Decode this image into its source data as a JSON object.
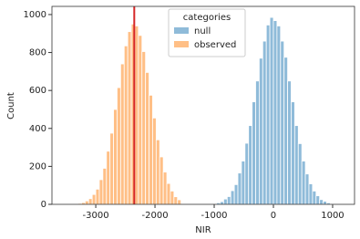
{
  "chart_data": {
    "type": "histogram",
    "xlabel": "NIR",
    "ylabel": "Count",
    "xlim": [
      -3740,
      1370
    ],
    "ylim": [
      0,
      1043
    ],
    "xticks": [
      -3000,
      -2000,
      -1000,
      0,
      1000
    ],
    "yticks": [
      0,
      200,
      400,
      600,
      800,
      1000
    ],
    "legend": "upper center",
    "legend_title": "categories",
    "vline": {
      "x": -2350,
      "color": "#d62728"
    },
    "series": [
      {
        "name": "null",
        "color": "#1f77b4",
        "bins": [
          -960,
          -900,
          -840,
          -780,
          -720,
          -660,
          -600,
          -540,
          -480,
          -420,
          -360,
          -300,
          -240,
          -180,
          -120,
          -60,
          0,
          60,
          120,
          180,
          240,
          300,
          360,
          420,
          480,
          540,
          600,
          660,
          720,
          780,
          840,
          900,
          960,
          1020,
          1080,
          1140
        ],
        "values": [
          8,
          14,
          28,
          41,
          72,
          104,
          165,
          228,
          322,
          415,
          540,
          650,
          770,
          860,
          945,
          985,
          968,
          940,
          860,
          775,
          650,
          540,
          415,
          320,
          228,
          160,
          108,
          70,
          45,
          25,
          16,
          8,
          4,
          2,
          1
        ]
      },
      {
        "name": "observed",
        "color": "#ff7f0e",
        "bins": [
          -3360,
          -3300,
          -3240,
          -3180,
          -3120,
          -3060,
          -3000,
          -2940,
          -2880,
          -2820,
          -2760,
          -2700,
          -2640,
          -2580,
          -2520,
          -2460,
          -2400,
          -2340,
          -2280,
          -2220,
          -2160,
          -2100,
          -2040,
          -1980,
          -1920,
          -1860,
          -1800,
          -1740,
          -1680,
          -1620,
          -1560
        ],
        "values": [
          2,
          5,
          9,
          18,
          30,
          52,
          80,
          130,
          190,
          280,
          375,
          500,
          615,
          740,
          835,
          910,
          950,
          940,
          890,
          805,
          695,
          575,
          455,
          340,
          250,
          170,
          110,
          70,
          40,
          24
        ]
      }
    ]
  }
}
